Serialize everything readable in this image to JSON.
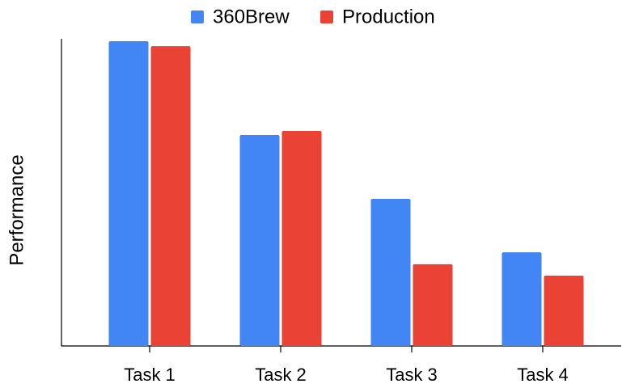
{
  "chart_data": {
    "type": "bar",
    "y_label": "Performance",
    "categories": [
      "Task 1",
      "Task 2",
      "Task 3",
      "Task 4"
    ],
    "series": [
      {
        "name": "360Brew",
        "color": "#4285f4",
        "values": [
          99.2,
          68.7,
          47.9,
          30.5
        ]
      },
      {
        "name": "Production",
        "color": "#ea4335",
        "values": [
          97.6,
          70,
          26.6,
          22.9
        ]
      }
    ],
    "ylim": [
      0,
      100
    ],
    "legend": "top"
  }
}
